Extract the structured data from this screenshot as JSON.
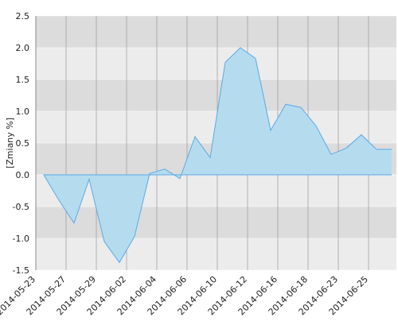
{
  "chart_data": {
    "type": "area",
    "y_label": "[Zmiany %]",
    "categories": [
      "2014-05-23",
      null,
      "2014-05-27",
      null,
      "2014-05-29",
      null,
      "2014-06-02",
      null,
      "2014-06-04",
      null,
      "2014-06-06",
      null,
      "2014-06-10",
      null,
      "2014-06-12",
      null,
      "2014-06-16",
      null,
      "2014-06-18",
      null,
      "2014-06-23",
      null,
      "2014-06-25",
      null
    ],
    "values": [
      0.0,
      -0.4,
      -0.76,
      -0.07,
      -1.05,
      -1.38,
      -0.97,
      0.02,
      0.09,
      -0.06,
      0.6,
      0.27,
      1.77,
      2.0,
      1.83,
      0.7,
      1.11,
      1.06,
      0.77,
      0.32,
      0.42,
      0.63,
      0.4,
      0.4
    ],
    "color": "#5aa9e6",
    "fill": "#b5dcee",
    "ylim": [
      -1.5,
      2.5
    ],
    "yticks": [
      -1.5,
      {
        "value": -1,
        "label": "-1.0"
      },
      -0.5,
      {
        "value": 0,
        "label": "0.0"
      },
      0.5,
      {
        "value": 1,
        "label": "1.0"
      },
      1.5,
      {
        "value": 2,
        "label": "2.0"
      },
      2.5
    ],
    "grid": true
  }
}
